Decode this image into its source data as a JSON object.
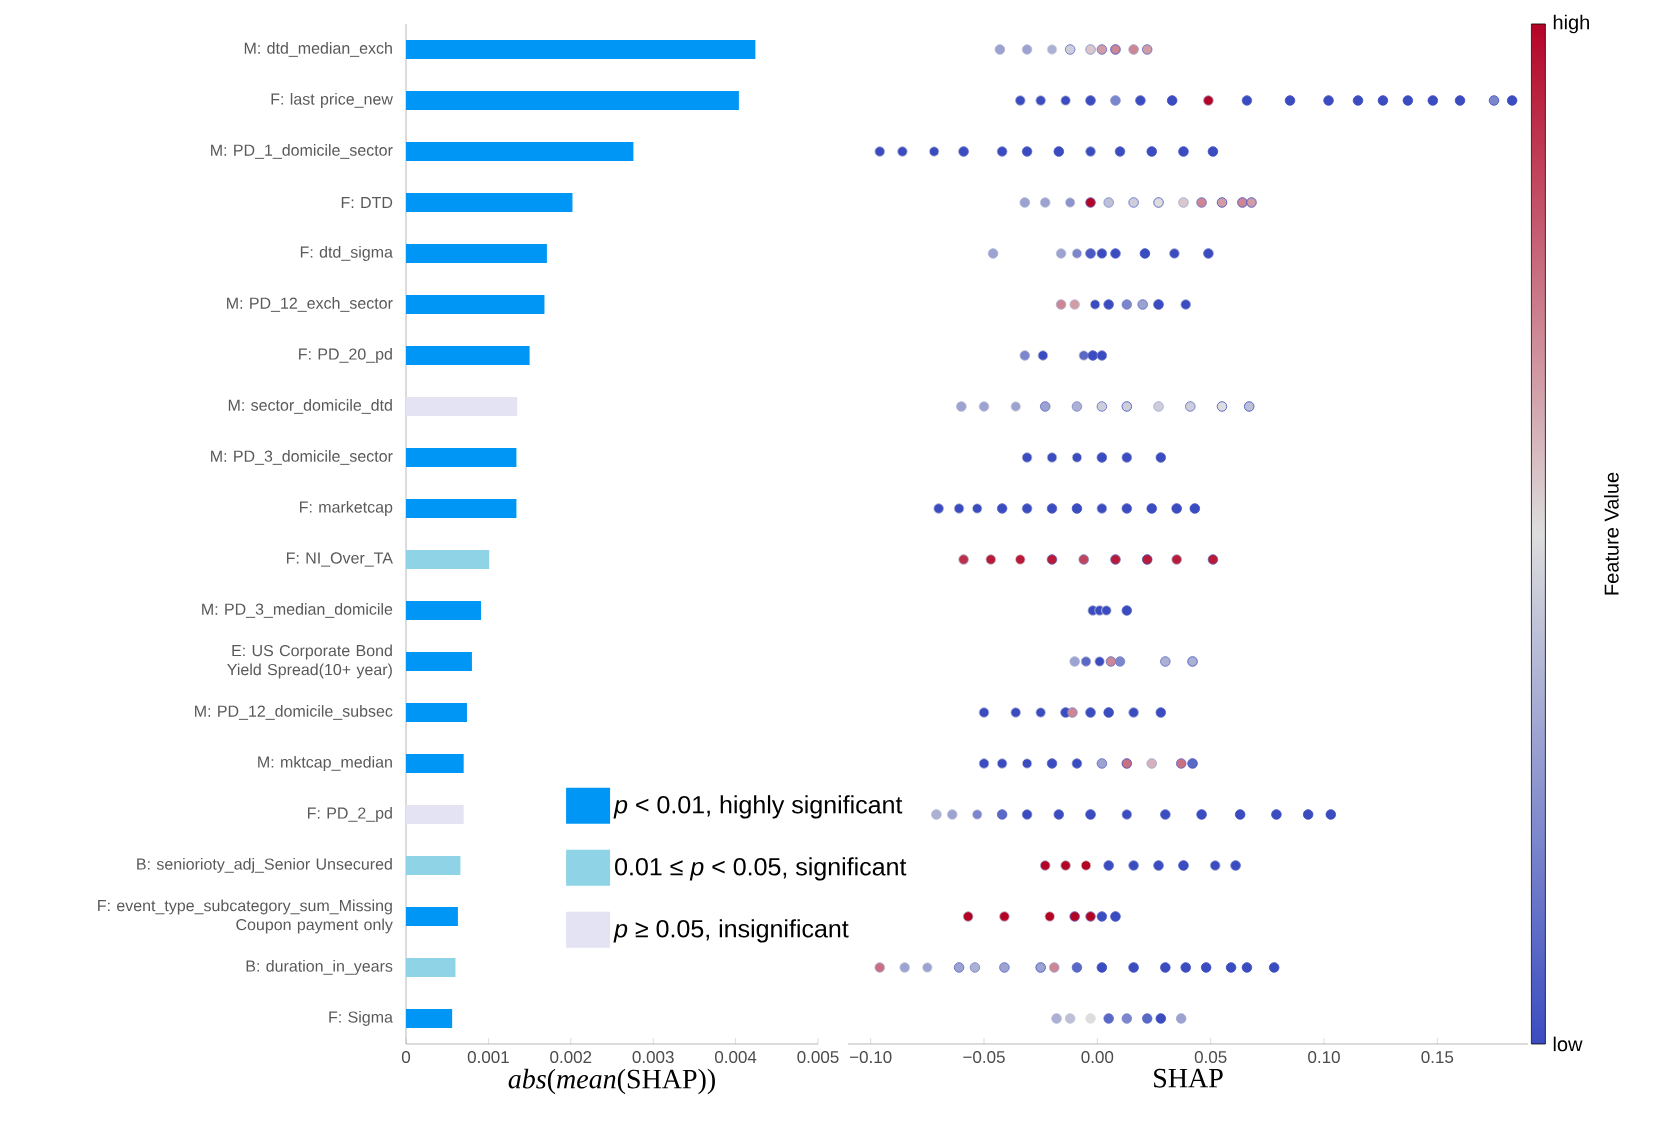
{
  "chart_data": [
    {
      "type": "bar",
      "orientation": "horizontal",
      "stacked": true,
      "legend": "bottom right",
      "categories": [
        "M: dtd_median_exch",
        "F: last price_new",
        "M: PD_1_domicile_sector",
        "F: DTD",
        "F: dtd_sigma",
        "M: PD_12_exch_sector",
        "F: PD_20_pd",
        "M: sector_domicile_dtd",
        "M: PD_3_domicile_sector",
        "F: marketcap",
        "F: NI_Over_TA",
        "M: PD_3_median_domicile",
        "E: US Corporate Bond Yield Spread(10+ year)",
        "M: PD_12_domicile_subsec",
        "M: mktcap_median",
        "F: PD_2_pd",
        "B: seniorioty_adj_Senior Unsecured",
        "F: event_type_subcategory_sum_Missing Coupon payment only",
        "B: duration_in_years",
        "F: Sigma"
      ],
      "series": [
        {
          "name": "*p* < 0.01, highly significant",
          "color": "#0096f5",
          "values": [
            0.00424,
            0.00404,
            0.00276,
            0.00202,
            0.00171,
            0.00168,
            0.0015,
            null,
            0.00134,
            0.00134,
            null,
            0.00091,
            0.0008,
            0.00074,
            0.0007,
            null,
            null,
            0.00063,
            null,
            0.00056
          ]
        },
        {
          "name": "0.01 ≤ *p* < 0.05, significant",
          "color": "#8fd3e6",
          "values": [
            null,
            null,
            null,
            null,
            null,
            null,
            null,
            null,
            null,
            null,
            0.00101,
            null,
            null,
            null,
            null,
            null,
            0.00066,
            null,
            0.0006,
            null
          ]
        },
        {
          "name": "*p* ≥ 0.05, insignificant",
          "color": "#e3e3f3",
          "values": [
            null,
            null,
            null,
            null,
            null,
            null,
            null,
            0.00135,
            null,
            null,
            null,
            null,
            null,
            null,
            null,
            0.0007,
            null,
            null,
            null,
            null
          ]
        }
      ],
      "xlim": [
        0,
        0.005
      ],
      "xticks": [
        0,
        0.001,
        0.002,
        0.003,
        0.004,
        0.005
      ],
      "xlabel": "*abs*(*mean*(SHAP))"
    },
    {
      "type": "scatter",
      "orientation": "horizontal",
      "tick_labels": "x",
      "categories": [
        "M: dtd_median_exch",
        "F: last price_new",
        "M: PD_1_domicile_sector",
        "F: DTD",
        "F: dtd_sigma",
        "M: PD_12_exch_sector",
        "F: PD_20_pd",
        "M: sector_domicile_dtd",
        "M: PD_3_domicile_sector",
        "F: marketcap",
        "F: NI_Over_TA",
        "M: PD_3_median_domicile",
        "E: US Corporate Bond Yield Spread(10+ year)",
        "M: PD_12_domicile_subsec",
        "M: mktcap_median",
        "F: PD_2_pd",
        "B: seniorioty_adj_Senior Unsecured",
        "F: event_type_subcategory_sum_Missing Coupon payment only",
        "B: duration_in_years",
        "F: Sigma"
      ],
      "series": [
        {
          "x": [
            "M: dtd_median_exch",
            "M: dtd_median_exch",
            "M: dtd_median_exch",
            "M: dtd_median_exch",
            "M: dtd_median_exch",
            "M: dtd_median_exch",
            "M: dtd_median_exch",
            "M: dtd_median_exch",
            "M: dtd_median_exch"
          ],
          "values": [
            -0.043,
            -0.031,
            -0.02,
            -0.012,
            -0.003,
            0.002,
            0.008,
            0.016,
            0.022
          ],
          "cvalues": [
            0.3,
            0.3,
            0.35,
            0.45,
            0.55,
            0.65,
            0.7,
            0.7,
            0.65
          ],
          "colors": [
            "#9ca3d1",
            "#9ca3d1",
            "#acb1d4",
            "#cdcfda",
            "#d9c7cb",
            "#d19ca6",
            "#cd8694",
            "#cd8694",
            "#d19ca6"
          ]
        },
        {
          "x": [
            "F: last price_new",
            "F: last price_new",
            "F: last price_new",
            "F: last price_new",
            "F: last price_new",
            "F: last price_new",
            "F: last price_new",
            "F: last price_new",
            "F: last price_new",
            "F: last price_new",
            "F: last price_new",
            "F: last price_new",
            "F: last price_new",
            "F: last price_new",
            "F: last price_new",
            "F: last price_new",
            "F: last price_new",
            "F: last price_new"
          ],
          "values": [
            -0.034,
            -0.025,
            -0.014,
            -0.003,
            0.008,
            0.019,
            0.033,
            0.049,
            0.066,
            0.085,
            0.102,
            0.115,
            0.126,
            0.137,
            0.148,
            0.16,
            0.175,
            0.183
          ],
          "cvalues": [
            0,
            0,
            0,
            0,
            0.2,
            0,
            0,
            1,
            0,
            0,
            0,
            0,
            0,
            0,
            0,
            0,
            0.2,
            0
          ],
          "colors": [
            "#3b4cc0",
            "#3b4cc0",
            "#3b4cc0",
            "#3b4cc0",
            "#7c86cc",
            "#3b4cc0",
            "#3b4cc0",
            "#b40426",
            "#3b4cc0",
            "#3b4cc0",
            "#3b4cc0",
            "#3b4cc0",
            "#3b4cc0",
            "#3b4cc0",
            "#3b4cc0",
            "#3b4cc0",
            "#7c86cc",
            "#3b4cc0"
          ]
        },
        {
          "x": [
            "M: PD_1_domicile_sector",
            "M: PD_1_domicile_sector",
            "M: PD_1_domicile_sector",
            "M: PD_1_domicile_sector",
            "M: PD_1_domicile_sector",
            "M: PD_1_domicile_sector",
            "M: PD_1_domicile_sector",
            "M: PD_1_domicile_sector",
            "M: PD_1_domicile_sector",
            "M: PD_1_domicile_sector",
            "M: PD_1_domicile_sector",
            "M: PD_1_domicile_sector"
          ],
          "values": [
            -0.096,
            -0.086,
            -0.072,
            -0.059,
            -0.042,
            -0.031,
            -0.017,
            -0.003,
            0.01,
            0.024,
            0.038,
            0.051
          ],
          "cvalues": [
            0,
            0,
            0,
            0,
            0,
            0,
            0,
            0,
            0,
            0,
            0,
            0
          ],
          "colors": [
            "#3b4cc0",
            "#3b4cc0",
            "#3b4cc0",
            "#3b4cc0",
            "#3b4cc0",
            "#3b4cc0",
            "#3b4cc0",
            "#3b4cc0",
            "#3b4cc0",
            "#3b4cc0",
            "#3b4cc0",
            "#3b4cc0"
          ]
        },
        {
          "x": [
            "F: DTD",
            "F: DTD",
            "F: DTD",
            "F: DTD",
            "F: DTD",
            "F: DTD",
            "F: DTD",
            "F: DTD",
            "F: DTD",
            "F: DTD",
            "F: DTD",
            "F: DTD"
          ],
          "values": [
            -0.032,
            -0.023,
            -0.012,
            -0.003,
            0.005,
            0.016,
            0.027,
            0.038,
            0.046,
            0.055,
            0.064,
            0.068
          ],
          "cvalues": [
            0.3,
            0.3,
            0.25,
            1,
            0.4,
            0.45,
            0.5,
            0.55,
            0.7,
            0.65,
            0.7,
            0.65
          ],
          "colors": [
            "#9ca3d1",
            "#9ca3d1",
            "#8c94ce",
            "#b40426",
            "#bdc0d7",
            "#cdcfda",
            "#dddddd",
            "#d9c7cb",
            "#cd8694",
            "#d19ca6",
            "#cd8694",
            "#d19ca6"
          ]
        },
        {
          "x": [
            "F: dtd_sigma",
            "F: dtd_sigma",
            "F: dtd_sigma",
            "F: dtd_sigma",
            "F: dtd_sigma",
            "F: dtd_sigma",
            "F: dtd_sigma",
            "F: dtd_sigma",
            "F: dtd_sigma"
          ],
          "values": [
            -0.046,
            -0.016,
            -0.009,
            -0.003,
            0.002,
            0.008,
            0.021,
            0.034,
            0.049
          ],
          "cvalues": [
            0.3,
            0.3,
            0.2,
            0.05,
            0,
            0,
            0,
            0,
            0
          ],
          "colors": [
            "#9ca3d1",
            "#9ca3d1",
            "#7c86cc",
            "#4b5bc3",
            "#3b4cc0",
            "#3b4cc0",
            "#3b4cc0",
            "#3b4cc0",
            "#3b4cc0"
          ]
        },
        {
          "x": [
            "M: PD_12_exch_sector",
            "M: PD_12_exch_sector",
            "M: PD_12_exch_sector",
            "M: PD_12_exch_sector",
            "M: PD_12_exch_sector",
            "M: PD_12_exch_sector",
            "M: PD_12_exch_sector",
            "M: PD_12_exch_sector"
          ],
          "values": [
            -0.016,
            -0.01,
            -0.001,
            0.005,
            0.013,
            0.02,
            0.027,
            0.039
          ],
          "cvalues": [
            0.7,
            0.65,
            0,
            0,
            0.2,
            0.3,
            0,
            0
          ],
          "colors": [
            "#cd8694",
            "#d19ca6",
            "#3b4cc0",
            "#3b4cc0",
            "#7c86cc",
            "#9ca3d1",
            "#3b4cc0",
            "#3b4cc0"
          ]
        },
        {
          "x": [
            "F: PD_20_pd",
            "F: PD_20_pd",
            "F: PD_20_pd",
            "F: PD_20_pd",
            "F: PD_20_pd"
          ],
          "values": [
            -0.032,
            -0.024,
            -0.006,
            -0.002,
            0.002
          ],
          "cvalues": [
            0.2,
            0,
            0.1,
            0,
            0
          ],
          "colors": [
            "#7c86cc",
            "#3b4cc0",
            "#5b69c6",
            "#3b4cc0",
            "#3b4cc0"
          ]
        },
        {
          "x": [
            "M: sector_domicile_dtd",
            "M: sector_domicile_dtd",
            "M: sector_domicile_dtd",
            "M: sector_domicile_dtd",
            "M: sector_domicile_dtd",
            "M: sector_domicile_dtd",
            "M: sector_domicile_dtd",
            "M: sector_domicile_dtd",
            "M: sector_domicile_dtd",
            "M: sector_domicile_dtd",
            "M: sector_domicile_dtd"
          ],
          "values": [
            -0.06,
            -0.05,
            -0.036,
            -0.023,
            -0.009,
            0.002,
            0.013,
            0.027,
            0.041,
            0.055,
            0.067
          ],
          "cvalues": [
            0.3,
            0.3,
            0.3,
            0.3,
            0.35,
            0.45,
            0.45,
            0.45,
            0.45,
            0.5,
            0.4
          ],
          "colors": [
            "#9ca3d1",
            "#9ca3d1",
            "#9ca3d1",
            "#9ca3d1",
            "#acb1d4",
            "#cdcfda",
            "#cdcfda",
            "#cdcfda",
            "#cdcfda",
            "#dddddd",
            "#bdc0d7"
          ]
        },
        {
          "x": [
            "M: PD_3_domicile_sector",
            "M: PD_3_domicile_sector",
            "M: PD_3_domicile_sector",
            "M: PD_3_domicile_sector",
            "M: PD_3_domicile_sector",
            "M: PD_3_domicile_sector"
          ],
          "values": [
            -0.031,
            -0.02,
            -0.009,
            0.002,
            0.013,
            0.028
          ],
          "cvalues": [
            0,
            0,
            0,
            0,
            0,
            0
          ],
          "colors": [
            "#3b4cc0",
            "#3b4cc0",
            "#3b4cc0",
            "#3b4cc0",
            "#3b4cc0",
            "#3b4cc0"
          ]
        },
        {
          "x": [
            "F: marketcap",
            "F: marketcap",
            "F: marketcap",
            "F: marketcap",
            "F: marketcap",
            "F: marketcap",
            "F: marketcap",
            "F: marketcap",
            "F: marketcap",
            "F: marketcap",
            "F: marketcap",
            "F: marketcap"
          ],
          "values": [
            -0.07,
            -0.061,
            -0.053,
            -0.042,
            -0.031,
            -0.02,
            -0.009,
            0.002,
            0.013,
            0.024,
            0.035,
            0.043
          ],
          "cvalues": [
            0,
            0,
            0,
            0,
            0,
            0,
            0,
            0,
            0,
            0,
            0,
            0
          ],
          "colors": [
            "#3b4cc0",
            "#3b4cc0",
            "#3b4cc0",
            "#3b4cc0",
            "#3b4cc0",
            "#3b4cc0",
            "#3b4cc0",
            "#3b4cc0",
            "#3b4cc0",
            "#3b4cc0",
            "#3b4cc0",
            "#3b4cc0"
          ]
        },
        {
          "x": [
            "F: NI_Over_TA",
            "F: NI_Over_TA",
            "F: NI_Over_TA",
            "F: NI_Over_TA",
            "F: NI_Over_TA",
            "F: NI_Over_TA",
            "F: NI_Over_TA",
            "F: NI_Over_TA",
            "F: NI_Over_TA"
          ],
          "values": [
            -0.059,
            -0.047,
            -0.034,
            -0.02,
            -0.006,
            0.008,
            0.022,
            0.035,
            0.051
          ],
          "cvalues": [
            0.9,
            0.95,
            0.95,
            0.95,
            0.85,
            0.95,
            0.95,
            0.95,
            0.95
          ],
          "colors": [
            "#bc2f4b",
            "#b81a38",
            "#b81a38",
            "#b81a38",
            "#c0455d",
            "#b81a38",
            "#b81a38",
            "#b81a38",
            "#b81a38"
          ]
        },
        {
          "x": [
            "M: PD_3_median_domicile",
            "M: PD_3_median_domicile",
            "M: PD_3_median_domicile",
            "M: PD_3_median_domicile"
          ],
          "values": [
            -0.002,
            0.001,
            0.004,
            0.013
          ],
          "cvalues": [
            0,
            0,
            0,
            0
          ],
          "colors": [
            "#3b4cc0",
            "#3b4cc0",
            "#3b4cc0",
            "#3b4cc0"
          ]
        },
        {
          "x": [
            "E: US Corporate Bond Yield Spread(10+ year)",
            "E: US Corporate Bond Yield Spread(10+ year)",
            "E: US Corporate Bond Yield Spread(10+ year)",
            "E: US Corporate Bond Yield Spread(10+ year)",
            "E: US Corporate Bond Yield Spread(10+ year)",
            "E: US Corporate Bond Yield Spread(10+ year)",
            "E: US Corporate Bond Yield Spread(10+ year)"
          ],
          "values": [
            -0.01,
            -0.005,
            0.001,
            0.006,
            0.01,
            0.03,
            0.042
          ],
          "cvalues": [
            0.3,
            0.1,
            0,
            0.7,
            0.2,
            0.35,
            0.35
          ],
          "colors": [
            "#9ca3d1",
            "#5b69c6",
            "#3b4cc0",
            "#cd8694",
            "#7c86cc",
            "#acb1d4",
            "#acb1d4"
          ]
        },
        {
          "x": [
            "M: PD_12_domicile_subsec",
            "M: PD_12_domicile_subsec",
            "M: PD_12_domicile_subsec",
            "M: PD_12_domicile_subsec",
            "M: PD_12_domicile_subsec",
            "M: PD_12_domicile_subsec",
            "M: PD_12_domicile_subsec",
            "M: PD_12_domicile_subsec",
            "M: PD_12_domicile_subsec"
          ],
          "values": [
            -0.05,
            -0.036,
            -0.025,
            -0.014,
            -0.011,
            -0.003,
            0.005,
            0.016,
            0.028
          ],
          "cvalues": [
            0,
            0,
            0,
            0,
            0.7,
            0,
            0,
            0,
            0
          ],
          "colors": [
            "#3b4cc0",
            "#3b4cc0",
            "#3b4cc0",
            "#3b4cc0",
            "#cd8694",
            "#3b4cc0",
            "#3b4cc0",
            "#3b4cc0",
            "#3b4cc0"
          ]
        },
        {
          "x": [
            "M: mktcap_median",
            "M: mktcap_median",
            "M: mktcap_median",
            "M: mktcap_median",
            "M: mktcap_median",
            "M: mktcap_median",
            "M: mktcap_median",
            "M: mktcap_median",
            "M: mktcap_median",
            "M: mktcap_median"
          ],
          "values": [
            -0.05,
            -0.042,
            -0.031,
            -0.02,
            -0.009,
            0.002,
            0.013,
            0.024,
            0.037,
            0.042
          ],
          "cvalues": [
            0,
            0,
            0,
            0,
            0,
            0.3,
            0.75,
            0.6,
            0.75,
            0.1
          ],
          "colors": [
            "#3b4cc0",
            "#3b4cc0",
            "#3b4cc0",
            "#3b4cc0",
            "#3b4cc0",
            "#9ca3d1",
            "#c87181",
            "#d5b2b8",
            "#c87181",
            "#5b69c6"
          ]
        },
        {
          "x": [
            "F: PD_2_pd",
            "F: PD_2_pd",
            "F: PD_2_pd",
            "F: PD_2_pd",
            "F: PD_2_pd",
            "F: PD_2_pd",
            "F: PD_2_pd",
            "F: PD_2_pd",
            "F: PD_2_pd",
            "F: PD_2_pd",
            "F: PD_2_pd",
            "F: PD_2_pd",
            "F: PD_2_pd",
            "F: PD_2_pd"
          ],
          "values": [
            -0.071,
            -0.064,
            -0.053,
            -0.042,
            -0.031,
            -0.017,
            -0.003,
            0.013,
            0.03,
            0.046,
            0.063,
            0.079,
            0.093,
            0.103
          ],
          "cvalues": [
            0.35,
            0.3,
            0.2,
            0.1,
            0,
            0,
            0,
            0,
            0,
            0,
            0,
            0,
            0,
            0
          ],
          "colors": [
            "#acb1d4",
            "#9ca3d1",
            "#7c86cc",
            "#5b69c6",
            "#3b4cc0",
            "#3b4cc0",
            "#3b4cc0",
            "#3b4cc0",
            "#3b4cc0",
            "#3b4cc0",
            "#3b4cc0",
            "#3b4cc0",
            "#3b4cc0",
            "#3b4cc0"
          ]
        },
        {
          "x": [
            "B: seniorioty_adj_Senior Unsecured",
            "B: seniorioty_adj_Senior Unsecured",
            "B: seniorioty_adj_Senior Unsecured",
            "B: seniorioty_adj_Senior Unsecured",
            "B: seniorioty_adj_Senior Unsecured",
            "B: seniorioty_adj_Senior Unsecured",
            "B: seniorioty_adj_Senior Unsecured",
            "B: seniorioty_adj_Senior Unsecured",
            "B: seniorioty_adj_Senior Unsecured"
          ],
          "values": [
            -0.023,
            -0.014,
            -0.005,
            0.005,
            0.016,
            0.027,
            0.038,
            0.052,
            0.061
          ],
          "cvalues": [
            1,
            1,
            1,
            0,
            0,
            0,
            0,
            0,
            0
          ],
          "colors": [
            "#b40426",
            "#b40426",
            "#b40426",
            "#3b4cc0",
            "#3b4cc0",
            "#3b4cc0",
            "#3b4cc0",
            "#3b4cc0",
            "#3b4cc0"
          ]
        },
        {
          "x": [
            "F: event_type_subcategory_sum_Missing Coupon payment only",
            "F: event_type_subcategory_sum_Missing Coupon payment only",
            "F: event_type_subcategory_sum_Missing Coupon payment only",
            "F: event_type_subcategory_sum_Missing Coupon payment only",
            "F: event_type_subcategory_sum_Missing Coupon payment only",
            "F: event_type_subcategory_sum_Missing Coupon payment only",
            "F: event_type_subcategory_sum_Missing Coupon payment only"
          ],
          "values": [
            -0.057,
            -0.041,
            -0.021,
            -0.01,
            -0.003,
            0.002,
            0.008
          ],
          "cvalues": [
            1,
            1,
            1,
            1,
            1,
            0,
            0
          ],
          "colors": [
            "#b40426",
            "#b40426",
            "#b40426",
            "#b40426",
            "#b40426",
            "#3b4cc0",
            "#3b4cc0"
          ]
        },
        {
          "x": [
            "B: duration_in_years",
            "B: duration_in_years",
            "B: duration_in_years",
            "B: duration_in_years",
            "B: duration_in_years",
            "B: duration_in_years",
            "B: duration_in_years",
            "B: duration_in_years",
            "B: duration_in_years",
            "B: duration_in_years",
            "B: duration_in_years",
            "B: duration_in_years",
            "B: duration_in_years",
            "B: duration_in_years",
            "B: duration_in_years",
            "B: duration_in_years",
            "B: duration_in_years"
          ],
          "values": [
            -0.096,
            -0.085,
            -0.075,
            -0.061,
            -0.054,
            -0.041,
            -0.025,
            -0.019,
            -0.009,
            0.002,
            0.016,
            0.03,
            0.039,
            0.048,
            0.059,
            0.066,
            0.078
          ],
          "cvalues": [
            0.75,
            0.3,
            0.3,
            0.3,
            0.35,
            0.3,
            0.3,
            0.7,
            0.1,
            0,
            0,
            0,
            0,
            0,
            0,
            0,
            0
          ],
          "colors": [
            "#c87181",
            "#9ca3d1",
            "#9ca3d1",
            "#9ca3d1",
            "#acb1d4",
            "#9ca3d1",
            "#9ca3d1",
            "#cd8694",
            "#5b69c6",
            "#3b4cc0",
            "#3b4cc0",
            "#3b4cc0",
            "#3b4cc0",
            "#3b4cc0",
            "#3b4cc0",
            "#3b4cc0",
            "#3b4cc0"
          ]
        },
        {
          "x": [
            "F: Sigma",
            "F: Sigma",
            "F: Sigma",
            "F: Sigma",
            "F: Sigma",
            "F: Sigma",
            "F: Sigma",
            "F: Sigma"
          ],
          "values": [
            -0.018,
            -0.012,
            -0.003,
            0.005,
            0.013,
            0.022,
            0.028,
            0.037
          ],
          "cvalues": [
            0.35,
            0.4,
            0.5,
            0.1,
            0.2,
            0.1,
            0,
            0.3
          ],
          "colors": [
            "#acb1d4",
            "#bdc0d7",
            "#dddddd",
            "#5b69c6",
            "#7c86cc",
            "#5b69c6",
            "#3b4cc0",
            "#9ca3d1"
          ]
        }
      ],
      "xlim": [
        -0.11,
        0.19
      ],
      "xticks": [
        {
          "value": -0.1,
          "label": "−0.10"
        },
        {
          "value": -0.05,
          "label": "−0.05"
        },
        {
          "value": 0,
          "label": "0.00"
        },
        {
          "value": 0.05,
          "label": "0.05"
        },
        {
          "value": 0.1,
          "label": "0.10"
        },
        {
          "value": 0.15,
          "label": "0.15"
        }
      ],
      "xlabel": "SHAP",
      "clabel": "Feature Value",
      "clim": [
        0,
        1
      ],
      "cticks": [
        {
          "value": 0,
          "label": "low"
        },
        {
          "value": 1,
          "label": "high"
        }
      ]
    }
  ]
}
